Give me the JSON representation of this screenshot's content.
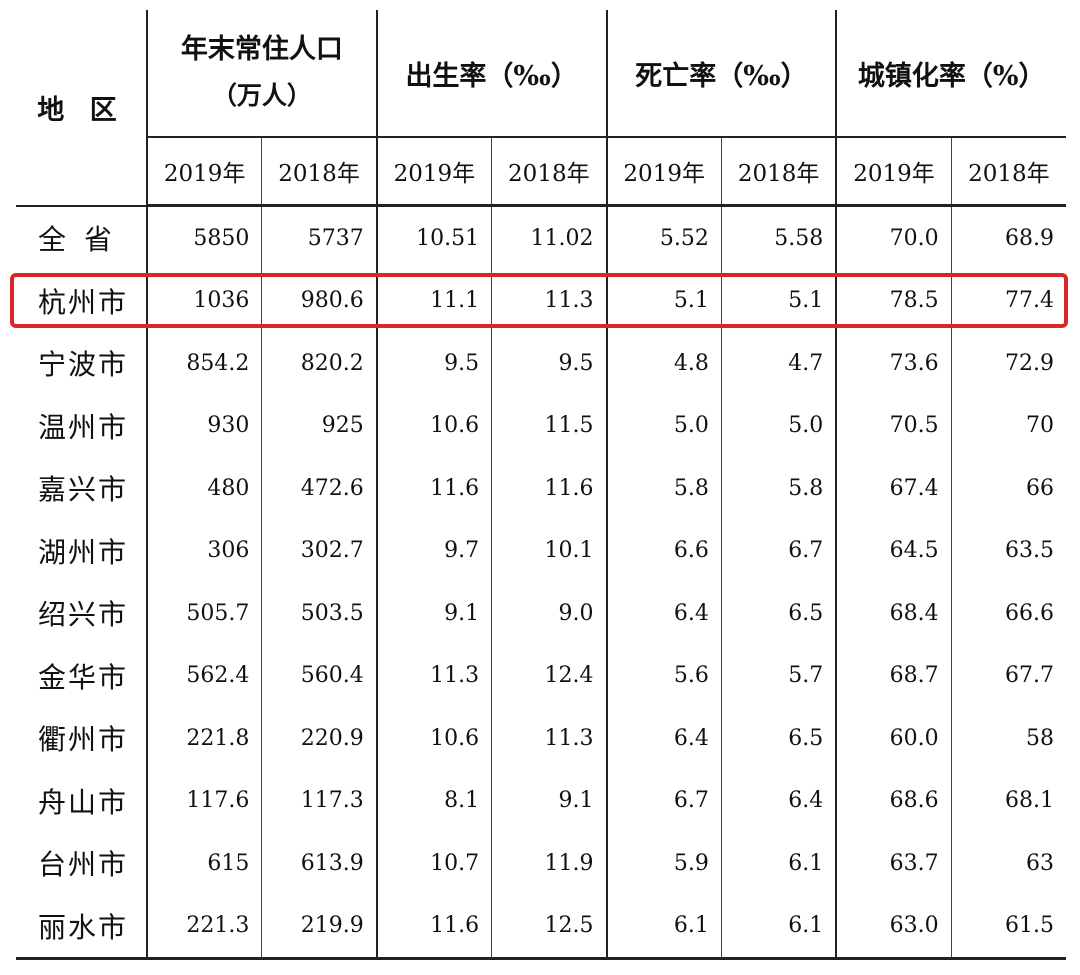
{
  "headers": {
    "region": "地 区",
    "population_line1": "年末常住人口",
    "population_line2": "（万人）",
    "birth_rate": "出生率（‰）",
    "death_rate": "死亡率（‰）",
    "urbanization": "城镇化率（%）",
    "years": [
      "2019年",
      "2018年",
      "2019年",
      "2018年",
      "2019年",
      "2018年",
      "2019年",
      "2018年"
    ]
  },
  "rows": [
    {
      "region": "全省",
      "pop2019": "5850",
      "pop2018": "5737",
      "birth2019": "10.51",
      "birth2018": "11.02",
      "death2019": "5.52",
      "death2018": "5.58",
      "urban2019": "70.0",
      "urban2018": "68.9"
    },
    {
      "region": "杭州市",
      "pop2019": "1036",
      "pop2018": "980.6",
      "birth2019": "11.1",
      "birth2018": "11.3",
      "death2019": "5.1",
      "death2018": "5.1",
      "urban2019": "78.5",
      "urban2018": "77.4"
    },
    {
      "region": "宁波市",
      "pop2019": "854.2",
      "pop2018": "820.2",
      "birth2019": "9.5",
      "birth2018": "9.5",
      "death2019": "4.8",
      "death2018": "4.7",
      "urban2019": "73.6",
      "urban2018": "72.9"
    },
    {
      "region": "温州市",
      "pop2019": "930",
      "pop2018": "925",
      "birth2019": "10.6",
      "birth2018": "11.5",
      "death2019": "5.0",
      "death2018": "5.0",
      "urban2019": "70.5",
      "urban2018": "70"
    },
    {
      "region": "嘉兴市",
      "pop2019": "480",
      "pop2018": "472.6",
      "birth2019": "11.6",
      "birth2018": "11.6",
      "death2019": "5.8",
      "death2018": "5.8",
      "urban2019": "67.4",
      "urban2018": "66"
    },
    {
      "region": "湖州市",
      "pop2019": "306",
      "pop2018": "302.7",
      "birth2019": "9.7",
      "birth2018": "10.1",
      "death2019": "6.6",
      "death2018": "6.7",
      "urban2019": "64.5",
      "urban2018": "63.5"
    },
    {
      "region": "绍兴市",
      "pop2019": "505.7",
      "pop2018": "503.5",
      "birth2019": "9.1",
      "birth2018": "9.0",
      "death2019": "6.4",
      "death2018": "6.5",
      "urban2019": "68.4",
      "urban2018": "66.6"
    },
    {
      "region": "金华市",
      "pop2019": "562.4",
      "pop2018": "560.4",
      "birth2019": "11.3",
      "birth2018": "12.4",
      "death2019": "5.6",
      "death2018": "5.7",
      "urban2019": "68.7",
      "urban2018": "67.7"
    },
    {
      "region": "衢州市",
      "pop2019": "221.8",
      "pop2018": "220.9",
      "birth2019": "10.6",
      "birth2018": "11.3",
      "death2019": "6.4",
      "death2018": "6.5",
      "urban2019": "60.0",
      "urban2018": "58"
    },
    {
      "region": "舟山市",
      "pop2019": "117.6",
      "pop2018": "117.3",
      "birth2019": "8.1",
      "birth2018": "9.1",
      "death2019": "6.7",
      "death2018": "6.4",
      "urban2019": "68.6",
      "urban2018": "68.1"
    },
    {
      "region": "台州市",
      "pop2019": "615",
      "pop2018": "613.9",
      "birth2019": "10.7",
      "birth2018": "11.9",
      "death2019": "5.9",
      "death2018": "6.1",
      "urban2019": "63.7",
      "urban2018": "63"
    },
    {
      "region": "丽水市",
      "pop2019": "221.3",
      "pop2018": "219.9",
      "birth2019": "11.6",
      "birth2018": "12.5",
      "death2019": "6.1",
      "death2018": "6.1",
      "urban2019": "63.0",
      "urban2018": "61.5"
    }
  ],
  "highlight_color": "#d9262b"
}
